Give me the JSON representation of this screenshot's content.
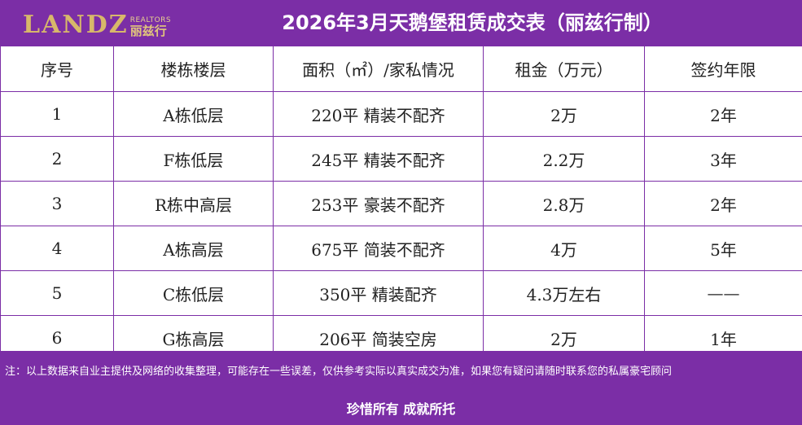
{
  "header": {
    "logo_text": "LANDZ",
    "logo_realtors": "REALTORS",
    "logo_cn": "丽兹行",
    "title": "2026年3月天鹅堡租赁成交表（丽兹行制）"
  },
  "table": {
    "headers": [
      "序号",
      "楼栋楼层",
      "面积（㎡）/家私情况",
      "租金（万元）",
      "签约年限"
    ],
    "rows": [
      [
        "1",
        "A栋低层",
        "220平  精装不配齐",
        "2万",
        "2年"
      ],
      [
        "2",
        "F栋低层",
        "245平  精装不配齐",
        "2.2万",
        "3年"
      ],
      [
        "3",
        "R栋中高层",
        "253平  豪装不配齐",
        "2.8万",
        "2年"
      ],
      [
        "4",
        "A栋高层",
        "675平  简装不配齐",
        "4万",
        "5年"
      ],
      [
        "5",
        "C栋低层",
        "350平  精装配齐",
        "4.3万左右",
        "——"
      ],
      [
        "6",
        "G栋高层",
        "206平  简装空房",
        "2万",
        "1年"
      ]
    ]
  },
  "footer": {
    "note": "注：以上数据来自业主提供及网络的收集整理，可能存在一些误差，仅供参考实际以真实成交为准，如果您有疑问请随时联系您的私属豪宅顾问",
    "slogan": "珍惜所有 成就所托"
  },
  "colors": {
    "brand_purple": "#7b2ea6",
    "logo_gold": "#d8b86a"
  }
}
